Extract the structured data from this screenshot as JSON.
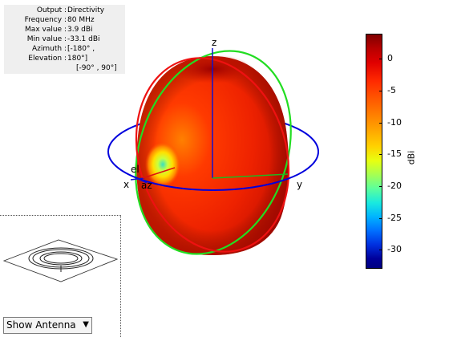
{
  "info": {
    "rows": [
      {
        "label": "Output :",
        "value": "Directivity"
      },
      {
        "label": "Frequency :",
        "value": "80 MHz"
      },
      {
        "label": "Max value :",
        "value": "3.9 dBi"
      },
      {
        "label": "Min value :",
        "value": "-33.1 dBi"
      },
      {
        "label": "Azimuth :",
        "value": "[-180° ,"
      },
      {
        "label": "Elevation :",
        "value": "180°]"
      }
    ],
    "extra": "[-90° , 90°]"
  },
  "axes": {
    "x": "x",
    "y": "y",
    "z": "z",
    "el": "el",
    "az": "az"
  },
  "colorbar": {
    "unit": "dBi",
    "ticks": [
      "0",
      "-5",
      "-10",
      "-15",
      "-20",
      "-25",
      "-30"
    ],
    "max": 3.9,
    "min": -33.1
  },
  "antenna_view": {
    "selected": "Show Antenna",
    "options": [
      "Show Antenna"
    ]
  },
  "colors": {
    "x_circle": "#0000dd",
    "y_circle": "#22dd22",
    "z_circle": "#ee1111",
    "pattern_main": "#e82800"
  }
}
